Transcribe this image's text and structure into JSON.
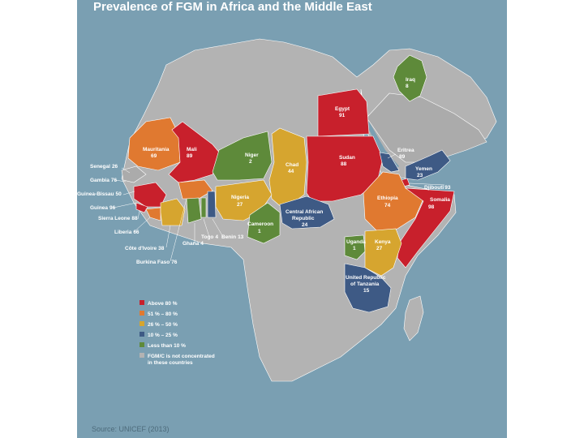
{
  "title": "Prevalence of FGM in Africa and the Middle East",
  "source": "Source: UNICEF (2013)",
  "colors": {
    "water": "#7a9fb2",
    "land": "#b3b3b3",
    "above_80": "#c8202c",
    "51_80": "#e07930",
    "26_50": "#d6a52f",
    "10_25": "#3e5a85",
    "below_10": "#5e8a3a",
    "not_concentrated": "#b3b3b3"
  },
  "legend": [
    {
      "label": "Above 80 %",
      "color": "#c8202c"
    },
    {
      "label": "51 % – 80 %",
      "color": "#e07930"
    },
    {
      "label": "26 % – 50 %",
      "color": "#d6a52f"
    },
    {
      "label": "10 % – 25 %",
      "color": "#3e5a85"
    },
    {
      "label": "Less than 10 %",
      "color": "#5e8a3a"
    },
    {
      "label": "FGM/C is not concentrated",
      "color": "#b3b3b3"
    },
    {
      "label": "in these countries",
      "color": ""
    }
  ],
  "countries": {
    "iraq": {
      "name": "Iraq",
      "value": "8"
    },
    "egypt": {
      "name": "Egypt",
      "value": "91"
    },
    "mauritania": {
      "name": "Mauritania",
      "value": "69"
    },
    "mali": {
      "name": "Mali",
      "value": "89"
    },
    "niger": {
      "name": "Niger",
      "value": "2"
    },
    "chad": {
      "name": "Chad",
      "value": "44"
    },
    "sudan": {
      "name": "Sudan",
      "value": "88"
    },
    "eritrea": {
      "name": "Eritrea",
      "value": "89"
    },
    "yemen": {
      "name": "Yemen",
      "value": "23"
    },
    "djibouti": {
      "name": "Djibouti",
      "value": "93"
    },
    "senegal": {
      "name": "Senegal",
      "value": "26"
    },
    "gambia": {
      "name": "Gambia",
      "value": "76"
    },
    "guinea_bissau": {
      "name": "Guinea-Bissau",
      "value": "50"
    },
    "guinea": {
      "name": "Guinea",
      "value": "96"
    },
    "sierra_leone": {
      "name": "Sierra Leone",
      "value": "88"
    },
    "liberia": {
      "name": "Liberia",
      "value": "66"
    },
    "cote_divoire": {
      "name": "Côte d'Ivoire",
      "value": "38"
    },
    "burkina_faso": {
      "name": "Burkina Faso",
      "value": "76"
    },
    "ghana": {
      "name": "Ghana",
      "value": "4"
    },
    "togo": {
      "name": "Togo",
      "value": "4"
    },
    "benin": {
      "name": "Benin",
      "value": "13"
    },
    "nigeria": {
      "name": "Nigeria",
      "value": "27"
    },
    "cameroon": {
      "name": "Cameroon",
      "value": "1"
    },
    "car": {
      "name_line1": "Central African",
      "name_line2": "Republic",
      "value": "24"
    },
    "ethiopia": {
      "name": "Ethiopia",
      "value": "74"
    },
    "somalia": {
      "name": "Somalia",
      "value": "98"
    },
    "uganda": {
      "name": "Uganda",
      "value": "1"
    },
    "kenya": {
      "name": "Kenya",
      "value": "27"
    },
    "tanzania": {
      "name_line1": "United Republic",
      "name_line2": "of Tanzania",
      "value": "15"
    }
  }
}
